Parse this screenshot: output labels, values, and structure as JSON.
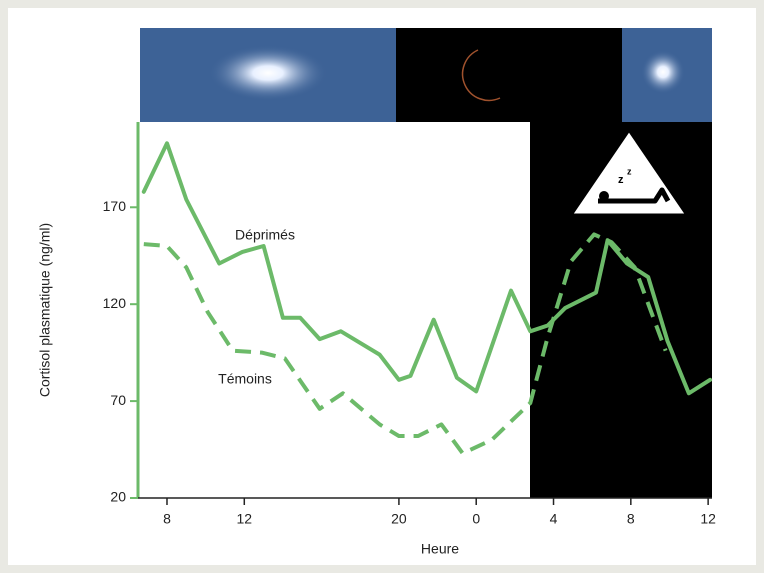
{
  "chart_data": {
    "type": "line",
    "y_label": "Cortisol plasmatique (ng/ml)",
    "x_label": "Heure",
    "xlim": [
      6.5,
      36.2
    ],
    "ylim": [
      20,
      214
    ],
    "xticks": [
      8,
      12,
      20,
      {
        "value": 24,
        "label": "0"
      },
      {
        "value": 28,
        "label": "4"
      },
      {
        "value": 32,
        "label": "8"
      },
      {
        "value": 36,
        "label": "12"
      }
    ],
    "yticks": [
      20,
      70,
      120,
      170
    ],
    "series": [
      {
        "name": "Déprimés",
        "color": "#6cba69",
        "dash": false,
        "x": [
          6.8,
          8,
          9,
          10.7,
          11.9,
          13,
          14,
          14.9,
          15.9,
          17,
          19,
          20,
          20.6,
          21.8,
          23,
          24,
          25.8,
          26.8,
          27.7,
          28.6,
          30.2,
          30.8,
          31.8,
          32.9,
          33.9,
          35,
          36.1
        ],
        "values": [
          178,
          203,
          174,
          141,
          147,
          150,
          113,
          113,
          102,
          106,
          94,
          81,
          83,
          112,
          82,
          75,
          127,
          106,
          109,
          118,
          126,
          153,
          141,
          134,
          101,
          74,
          81
        ]
      },
      {
        "name": "Témoins",
        "color": "#6cba69",
        "dash": true,
        "x": [
          6.8,
          8,
          9,
          10.1,
          11.4,
          12.9,
          14.1,
          15.9,
          17.1,
          19,
          20,
          21,
          22.2,
          23.3,
          24.8,
          26.8,
          27.7,
          28.9,
          30.1,
          31,
          32.2,
          33.8
        ],
        "values": [
          151,
          150,
          139,
          116,
          96,
          95,
          92,
          66,
          74,
          58,
          52,
          52,
          58,
          43,
          50,
          69,
          103,
          142,
          156,
          152,
          139,
          96
        ]
      }
    ]
  }
}
